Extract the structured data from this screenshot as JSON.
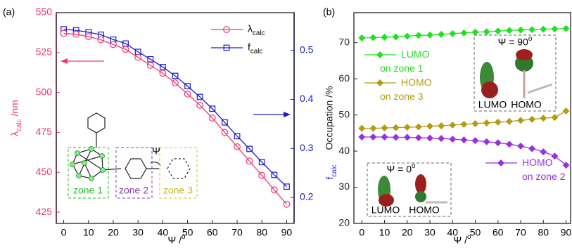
{
  "chart_data": [
    {
      "type": "line",
      "panel_label": "(a)",
      "xlabel": "Ψ /o",
      "ylabel": "λcalc /nm",
      "y2label": "fcalc",
      "x": [
        0,
        5,
        10,
        15,
        20,
        25,
        30,
        35,
        40,
        45,
        50,
        55,
        60,
        65,
        70,
        75,
        80,
        85,
        90
      ],
      "xlim": [
        -3,
        93
      ],
      "xticks": [
        0,
        10,
        20,
        30,
        40,
        50,
        60,
        70,
        80,
        90
      ],
      "ylim": [
        418,
        550
      ],
      "yticks": [
        425,
        450,
        475,
        500,
        525,
        550
      ],
      "y2lim": [
        0.147,
        0.577
      ],
      "y2ticks": [
        0.2,
        0.3,
        0.4,
        0.5
      ],
      "legend": "upper right",
      "series": [
        {
          "name": "λcalc",
          "color": "#f0357a",
          "marker": "circle",
          "values": [
            537,
            536.5,
            535,
            533,
            530,
            527,
            522,
            517,
            512,
            506,
            499,
            492,
            484,
            475,
            466,
            457,
            448,
            439,
            430
          ]
        },
        {
          "name": "fcalc",
          "color": "#1c1cc8",
          "marker": "square",
          "axis": "y2",
          "values": [
            0.543,
            0.541,
            0.537,
            0.532,
            0.522,
            0.514,
            0.497,
            0.482,
            0.466,
            0.448,
            0.427,
            0.405,
            0.381,
            0.353,
            0.325,
            0.299,
            0.272,
            0.246,
            0.222
          ]
        }
      ],
      "annotations": [
        "zone 1",
        "zone 2",
        "zone 3",
        "Ψ"
      ]
    },
    {
      "type": "line",
      "panel_label": "(b)",
      "xlabel": "Ψ /o",
      "ylabel": "Occupation /%",
      "x": [
        0,
        5,
        10,
        15,
        20,
        25,
        30,
        35,
        40,
        45,
        50,
        55,
        60,
        65,
        70,
        75,
        80,
        85,
        90
      ],
      "xlim": [
        -3.5,
        92
      ],
      "xticks": [
        0,
        10,
        20,
        30,
        40,
        50,
        60,
        70,
        80,
        90
      ],
      "ylim": [
        20,
        78.3
      ],
      "yticks": [
        20,
        30,
        40,
        50,
        60,
        70
      ],
      "series": [
        {
          "name": "LUMO on zone 1",
          "color": "#22e022",
          "marker": "diamond",
          "values": [
            71.3,
            71.4,
            71.5,
            71.6,
            71.8,
            72.0,
            72.1,
            72.3,
            72.5,
            72.7,
            72.9,
            73.0,
            73.2,
            73.4,
            73.5,
            73.6,
            73.7,
            73.8,
            73.9
          ]
        },
        {
          "name": "HOMO on zone 3",
          "color": "#b39b12",
          "marker": "diamond",
          "values": [
            46.3,
            46.3,
            46.4,
            46.5,
            46.6,
            46.7,
            46.9,
            47.0,
            47.2,
            47.4,
            47.6,
            47.8,
            48.0,
            48.2,
            48.5,
            48.8,
            49.1,
            49.3,
            51.1
          ]
        },
        {
          "name": "HOMO on zone 2",
          "color": "#9a2fe0",
          "marker": "diamond",
          "values": [
            43.9,
            43.9,
            43.9,
            43.8,
            43.8,
            43.7,
            43.6,
            43.5,
            43.3,
            43.1,
            42.9,
            42.6,
            42.3,
            41.9,
            41.4,
            40.7,
            39.8,
            38.6,
            36.1
          ]
        }
      ],
      "annotations": [
        "Ψ = 90o",
        "LUMO",
        "HOMO",
        "Ψ = 0o",
        "LUMO",
        "HOMO"
      ]
    }
  ]
}
